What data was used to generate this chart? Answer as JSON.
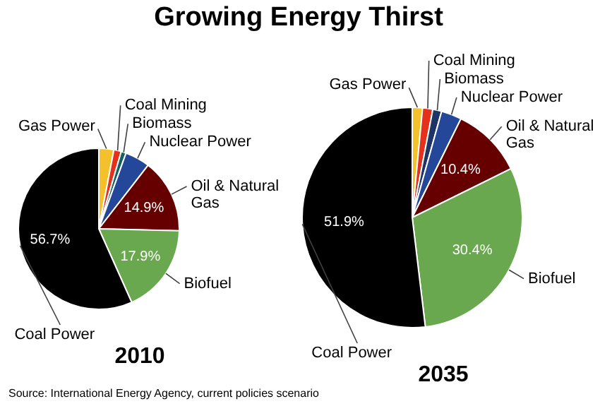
{
  "chart_data": [
    {
      "type": "pie",
      "title": "2010",
      "categories": [
        "Gas Power",
        "Coal Mining",
        "Biomass",
        "Nuclear Power",
        "Oil & Natural Gas",
        "Biofuel",
        "Coal Power"
      ],
      "values": [
        3.0,
        1.5,
        1.0,
        5.0,
        14.9,
        17.9,
        56.7
      ],
      "colors": [
        "#f4c12c",
        "#e5301c",
        "#14605e",
        "#24479a",
        "#660000",
        "#6aa84f",
        "#000000"
      ],
      "value_labels": [
        null,
        null,
        null,
        null,
        "14.9%",
        "17.9%",
        "56.7%"
      ],
      "annotations": [
        "Growing Energy Thirst"
      ]
    },
    {
      "type": "pie",
      "title": "2035",
      "categories": [
        "Gas Power",
        "Coal Mining",
        "Biomass",
        "Nuclear Power",
        "Oil & Natural Gas",
        "Biofuel",
        "Coal Power"
      ],
      "values": [
        1.5,
        1.5,
        1.3,
        3.0,
        10.4,
        30.4,
        51.9
      ],
      "colors": [
        "#f4c12c",
        "#e5301c",
        "#1c3566",
        "#24479a",
        "#660000",
        "#6aa84f",
        "#000000"
      ],
      "value_labels": [
        null,
        null,
        null,
        null,
        "10.4%",
        "30.4%",
        "51.9%"
      ],
      "annotations": [
        "Source: International Energy Agency, current policies scenario"
      ]
    }
  ]
}
